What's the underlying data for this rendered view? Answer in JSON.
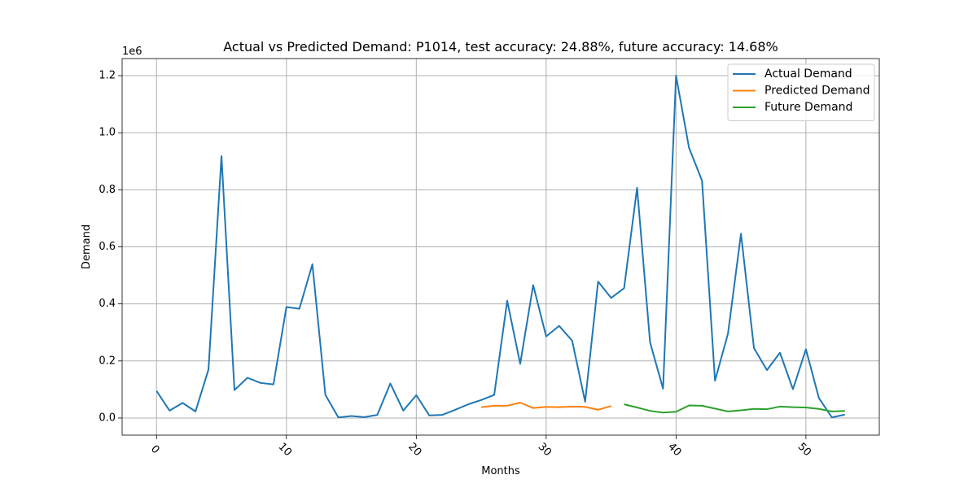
{
  "chart_data": {
    "type": "line",
    "title": "Actual vs Predicted Demand: P1014, test accuracy: 24.88%, future accuracy: 14.68%",
    "xlabel": "Months",
    "ylabel": "Demand",
    "y_offset_label": "1e6",
    "xlim": [
      -2.65,
      55.65
    ],
    "ylim": [
      -0.06,
      1.26
    ],
    "x_ticks": [
      0,
      10,
      20,
      30,
      40,
      50
    ],
    "y_ticks": [
      0.0,
      0.2,
      0.4,
      0.6,
      0.8,
      1.0,
      1.2
    ],
    "y_tick_labels": [
      "0.0",
      "0.2",
      "0.4",
      "0.6",
      "0.8",
      "1.0",
      "1.2"
    ],
    "grid": true,
    "legend_position": "top-right",
    "series": [
      {
        "name": "Actual Demand",
        "color": "#1f77b4",
        "x": [
          0,
          1,
          2,
          3,
          4,
          5,
          6,
          7,
          8,
          9,
          10,
          11,
          12,
          13,
          14,
          15,
          16,
          17,
          18,
          19,
          20,
          21,
          22,
          23,
          24,
          25,
          26,
          27,
          28,
          29,
          30,
          31,
          32,
          33,
          34,
          35,
          36,
          37,
          38,
          39,
          40,
          41,
          42,
          43,
          44,
          45,
          46,
          47,
          48,
          49,
          50,
          51,
          52,
          53
        ],
        "values": [
          0.095,
          0.026,
          0.053,
          0.023,
          0.17,
          0.918,
          0.098,
          0.141,
          0.123,
          0.118,
          0.389,
          0.383,
          0.539,
          0.081,
          0.002,
          0.007,
          0.003,
          0.011,
          0.121,
          0.026,
          0.08,
          0.009,
          0.011,
          0.029,
          0.048,
          0.063,
          0.081,
          0.411,
          0.19,
          0.466,
          0.286,
          0.323,
          0.271,
          0.057,
          0.478,
          0.421,
          0.455,
          0.807,
          0.265,
          0.103,
          1.2,
          0.947,
          0.832,
          0.131,
          0.296,
          0.646,
          0.245,
          0.168,
          0.229,
          0.101,
          0.241,
          0.07,
          0.002,
          0.012
        ]
      },
      {
        "name": "Predicted Demand",
        "color": "#ff7f0e",
        "x": [
          25,
          26,
          27,
          28,
          29,
          30,
          31,
          32,
          33,
          34,
          35
        ],
        "values": [
          0.038,
          0.043,
          0.043,
          0.054,
          0.035,
          0.039,
          0.038,
          0.04,
          0.039,
          0.029,
          0.042
        ]
      },
      {
        "name": "Future Demand",
        "color": "#2ca02c",
        "x": [
          36,
          37,
          38,
          39,
          40,
          41,
          42,
          43,
          44,
          45,
          46,
          47,
          48,
          49,
          50,
          51,
          52,
          53
        ],
        "values": [
          0.048,
          0.037,
          0.025,
          0.019,
          0.022,
          0.044,
          0.043,
          0.033,
          0.023,
          0.027,
          0.032,
          0.031,
          0.04,
          0.038,
          0.037,
          0.032,
          0.023,
          0.025
        ]
      }
    ]
  }
}
